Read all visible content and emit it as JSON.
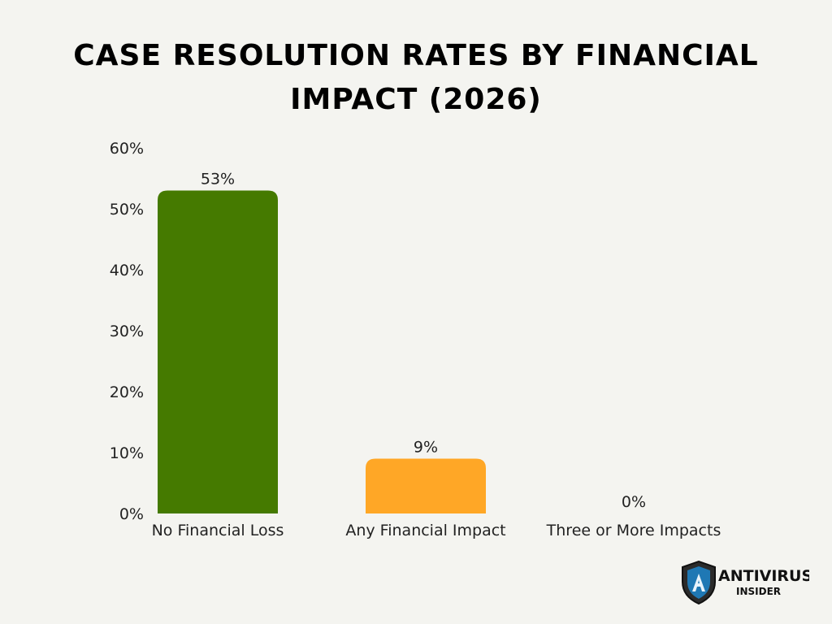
{
  "chart_data": {
    "type": "bar",
    "title": "CASE RESOLUTION RATES BY FINANCIAL IMPACT (2026)",
    "categories": [
      "No Financial Loss",
      "Any Financial Impact",
      "Three or More Impacts"
    ],
    "values": [
      53,
      9,
      0
    ],
    "data_labels": [
      "53%",
      "9%",
      "0%"
    ],
    "colors": [
      "#457a00",
      "#ffa726",
      "#ffa726"
    ],
    "ylim": [
      0,
      60
    ],
    "yticks": [
      0,
      10,
      20,
      30,
      40,
      50,
      60
    ],
    "ytick_labels": [
      "0%",
      "10%",
      "20%",
      "30%",
      "40%",
      "50%",
      "60%"
    ],
    "grid": false,
    "legend": "none"
  },
  "logo": {
    "line1": "ANTIVIRUS",
    "line2": "INSIDER",
    "shield_color": "#1f78b4"
  }
}
